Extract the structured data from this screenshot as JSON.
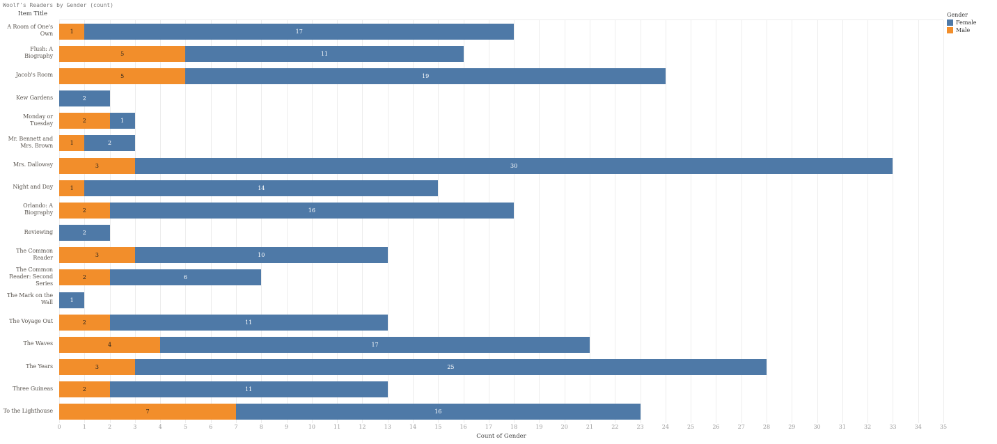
{
  "chart_title": "Woolf's Readers by Gender (count)",
  "legend": {
    "title": "Gender",
    "entries": [
      {
        "label": "Female",
        "color": "#4e79a7"
      },
      {
        "label": "Male",
        "color": "#f28e2b"
      }
    ]
  },
  "chart_data": {
    "type": "bar",
    "orientation": "horizontal-stacked",
    "title": "Woolf's Readers by Gender (count)",
    "categories": [
      "A Room of One's Own",
      "Flush: A Biography",
      "Jacob's Room",
      "Kew Gardens",
      "Monday or Tuesday",
      "Mr. Bennett and Mrs. Brown",
      "Mrs. Dalloway",
      "Night and Day",
      "Orlando: A Biography",
      "Reviewing",
      "The Common Reader",
      "The Common Reader: Second Series",
      "The Mark on the Wall",
      "The Voyage Out",
      "The Waves",
      "The Years",
      "Three Guineas",
      "To the Lighthouse"
    ],
    "series": [
      {
        "name": "Male",
        "color": "#f28e2b",
        "label_color": "#1e1e1e",
        "values": [
          1,
          5,
          5,
          0,
          2,
          1,
          3,
          1,
          2,
          0,
          3,
          2,
          0,
          2,
          4,
          3,
          2,
          7
        ]
      },
      {
        "name": "Female",
        "color": "#4e79a7",
        "label_color": "#ffffff",
        "values": [
          17,
          11,
          19,
          2,
          1,
          2,
          30,
          14,
          16,
          2,
          10,
          6,
          1,
          11,
          17,
          25,
          11,
          16
        ]
      }
    ],
    "stack_order": [
      "Male",
      "Female"
    ],
    "xlabel": "Count of Gender",
    "ylabel": "Item Title",
    "xlim": [
      0,
      35
    ],
    "x_tick_step": 1,
    "grid": true,
    "legend_position": "top-right",
    "value_labels": "inside-center"
  }
}
